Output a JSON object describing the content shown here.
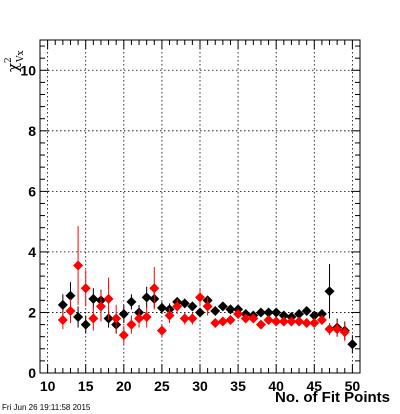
{
  "timestamp": "Fri Jun 26 19:11:58 2015",
  "chart_data": {
    "type": "scatter",
    "xlabel": "No. of Fit Points",
    "ylabel": {
      "symbol": "χ",
      "superscript": "2",
      "subscript": "Vx"
    },
    "xlim": [
      9,
      51
    ],
    "ylim": [
      0,
      11
    ],
    "x_ticks": [
      10,
      15,
      20,
      25,
      30,
      35,
      40,
      45,
      50
    ],
    "y_ticks": [
      0,
      2,
      4,
      6,
      8,
      10
    ],
    "grid": true,
    "series": [
      {
        "color": "#000000",
        "points": [
          {
            "x": 12,
            "y": 2.25,
            "err": 0.35
          },
          {
            "x": 13,
            "y": 2.55,
            "err": 0.45
          },
          {
            "x": 14,
            "y": 1.85,
            "err": 0.35
          },
          {
            "x": 15,
            "y": 1.6,
            "err": 0.3
          },
          {
            "x": 16,
            "y": 2.45,
            "err": 0.35
          },
          {
            "x": 17,
            "y": 2.4,
            "err": 0.35
          },
          {
            "x": 18,
            "y": 1.8,
            "err": 0.3
          },
          {
            "x": 19,
            "y": 1.6,
            "err": 0.3
          },
          {
            "x": 20,
            "y": 1.95,
            "err": 0.3
          },
          {
            "x": 21,
            "y": 2.35,
            "err": 0.25
          },
          {
            "x": 22,
            "y": 2.0,
            "err": 0.25
          },
          {
            "x": 23,
            "y": 2.5,
            "err": 0.35
          },
          {
            "x": 24,
            "y": 2.45,
            "err": 0.3
          },
          {
            "x": 25,
            "y": 2.15,
            "err": 0.2
          },
          {
            "x": 26,
            "y": 2.1,
            "err": 0.2
          },
          {
            "x": 27,
            "y": 2.35,
            "err": 0.15
          },
          {
            "x": 28,
            "y": 2.3,
            "err": 0.15
          },
          {
            "x": 29,
            "y": 2.2,
            "err": 0.15
          },
          {
            "x": 30,
            "y": 2.0,
            "err": 0.15
          },
          {
            "x": 31,
            "y": 2.4,
            "err": 0.15
          },
          {
            "x": 32,
            "y": 2.05,
            "err": 0.1
          },
          {
            "x": 33,
            "y": 2.2,
            "err": 0.1
          },
          {
            "x": 34,
            "y": 2.1,
            "err": 0.1
          },
          {
            "x": 35,
            "y": 2.1,
            "err": 0.1
          },
          {
            "x": 36,
            "y": 1.95,
            "err": 0.1
          },
          {
            "x": 37,
            "y": 1.9,
            "err": 0.1
          },
          {
            "x": 38,
            "y": 2.0,
            "err": 0.1
          },
          {
            "x": 39,
            "y": 2.0,
            "err": 0.1
          },
          {
            "x": 40,
            "y": 2.0,
            "err": 0.1
          },
          {
            "x": 41,
            "y": 1.9,
            "err": 0.1
          },
          {
            "x": 42,
            "y": 1.85,
            "err": 0.1
          },
          {
            "x": 43,
            "y": 1.95,
            "err": 0.1
          },
          {
            "x": 44,
            "y": 2.05,
            "err": 0.1
          },
          {
            "x": 45,
            "y": 1.9,
            "err": 0.1
          },
          {
            "x": 46,
            "y": 1.95,
            "err": 0.15
          },
          {
            "x": 47,
            "y": 2.7,
            "err": 0.9
          },
          {
            "x": 48,
            "y": 1.5,
            "err": 0.3
          },
          {
            "x": 49,
            "y": 1.4,
            "err": 0.3
          },
          {
            "x": 50,
            "y": 0.95,
            "err": 0.3
          }
        ]
      },
      {
        "color": "#ff0000",
        "points": [
          {
            "x": 12,
            "y": 1.75,
            "err": 0.3
          },
          {
            "x": 13,
            "y": 2.05,
            "err": 0.4
          },
          {
            "x": 14,
            "y": 3.55,
            "err": 1.3
          },
          {
            "x": 15,
            "y": 2.8,
            "err": 0.6
          },
          {
            "x": 16,
            "y": 1.8,
            "err": 0.4
          },
          {
            "x": 17,
            "y": 2.2,
            "err": 0.5
          },
          {
            "x": 18,
            "y": 2.45,
            "err": 0.7
          },
          {
            "x": 19,
            "y": 1.8,
            "err": 0.45
          },
          {
            "x": 20,
            "y": 1.25,
            "err": 0.3
          },
          {
            "x": 21,
            "y": 1.6,
            "err": 0.3
          },
          {
            "x": 22,
            "y": 1.8,
            "err": 0.3
          },
          {
            "x": 23,
            "y": 1.85,
            "err": 0.35
          },
          {
            "x": 24,
            "y": 2.8,
            "err": 0.7
          },
          {
            "x": 25,
            "y": 1.4,
            "err": 0.2
          },
          {
            "x": 26,
            "y": 1.9,
            "err": 0.25
          },
          {
            "x": 27,
            "y": 2.2,
            "err": 0.25
          },
          {
            "x": 28,
            "y": 1.8,
            "err": 0.2
          },
          {
            "x": 29,
            "y": 1.8,
            "err": 0.2
          },
          {
            "x": 30,
            "y": 2.5,
            "err": 0.3
          },
          {
            "x": 31,
            "y": 2.2,
            "err": 0.3
          },
          {
            "x": 32,
            "y": 1.65,
            "err": 0.1
          },
          {
            "x": 33,
            "y": 1.7,
            "err": 0.1
          },
          {
            "x": 34,
            "y": 1.75,
            "err": 0.1
          },
          {
            "x": 35,
            "y": 1.95,
            "err": 0.1
          },
          {
            "x": 36,
            "y": 1.8,
            "err": 0.1
          },
          {
            "x": 37,
            "y": 1.8,
            "err": 0.1
          },
          {
            "x": 38,
            "y": 1.6,
            "err": 0.1
          },
          {
            "x": 39,
            "y": 1.75,
            "err": 0.1
          },
          {
            "x": 40,
            "y": 1.7,
            "err": 0.1
          },
          {
            "x": 41,
            "y": 1.7,
            "err": 0.1
          },
          {
            "x": 42,
            "y": 1.7,
            "err": 0.1
          },
          {
            "x": 43,
            "y": 1.7,
            "err": 0.1
          },
          {
            "x": 44,
            "y": 1.65,
            "err": 0.1
          },
          {
            "x": 45,
            "y": 1.65,
            "err": 0.1
          },
          {
            "x": 46,
            "y": 1.75,
            "err": 0.15
          },
          {
            "x": 47,
            "y": 1.45,
            "err": 0.2
          },
          {
            "x": 48,
            "y": 1.45,
            "err": 0.25
          },
          {
            "x": 49,
            "y": 1.35,
            "err": 0.3
          }
        ]
      }
    ]
  }
}
